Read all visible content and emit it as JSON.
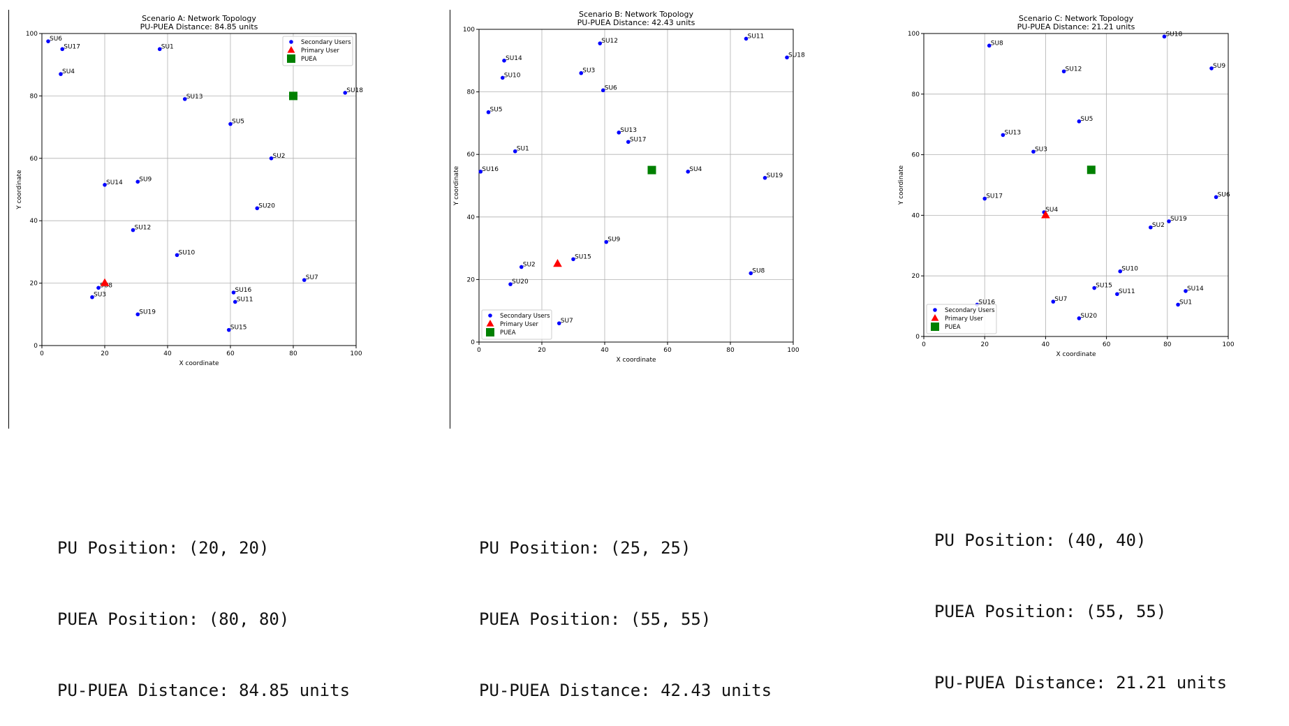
{
  "colors": {
    "secondary": "#0000ff",
    "primary": "#ff0000",
    "puea": "#008000",
    "grid": "#b0b0b0"
  },
  "chart_data": [
    {
      "type": "scatter",
      "title": "Scenario A: Network Topology",
      "subtitle": "PU-PUEA Distance: 84.85 units",
      "xlabel": "X coordinate",
      "ylabel": "Y coordinate",
      "xlim": [
        0,
        100
      ],
      "ylim": [
        0,
        100
      ],
      "xticks": [
        "0",
        "20",
        "40",
        "60",
        "80",
        "100"
      ],
      "yticks": [
        "0",
        "20",
        "40",
        "60",
        "80",
        "100"
      ],
      "grid": true,
      "legend_position": "top-right",
      "legend": [
        "Secondary Users",
        "Primary User",
        "PUEA"
      ],
      "secondary_users": [
        {
          "label": "SU1",
          "x": 37.5,
          "y": 95
        },
        {
          "label": "SU2",
          "x": 73,
          "y": 60
        },
        {
          "label": "SU3",
          "x": 16,
          "y": 15.5
        },
        {
          "label": "SU4",
          "x": 6,
          "y": 87
        },
        {
          "label": "SU5",
          "x": 60,
          "y": 71
        },
        {
          "label": "SU6",
          "x": 2,
          "y": 97.5
        },
        {
          "label": "SU7",
          "x": 83.5,
          "y": 21
        },
        {
          "label": "SU8",
          "x": 18,
          "y": 18.5
        },
        {
          "label": "SU9",
          "x": 30.5,
          "y": 52.5
        },
        {
          "label": "SU10",
          "x": 43,
          "y": 29
        },
        {
          "label": "SU11",
          "x": 61.5,
          "y": 14
        },
        {
          "label": "SU12",
          "x": 29,
          "y": 37
        },
        {
          "label": "SU13",
          "x": 45.5,
          "y": 79
        },
        {
          "label": "SU14",
          "x": 20,
          "y": 51.5
        },
        {
          "label": "SU15",
          "x": 59.5,
          "y": 5
        },
        {
          "label": "SU16",
          "x": 61,
          "y": 17
        },
        {
          "label": "SU17",
          "x": 6.5,
          "y": 95
        },
        {
          "label": "SU18",
          "x": 96.5,
          "y": 81
        },
        {
          "label": "SU19",
          "x": 30.5,
          "y": 10
        },
        {
          "label": "SU20",
          "x": 68.5,
          "y": 44
        }
      ],
      "primary_user": {
        "x": 20,
        "y": 20
      },
      "puea": {
        "x": 80,
        "y": 80
      }
    },
    {
      "type": "scatter",
      "title": "Scenario B: Network Topology",
      "subtitle": "PU-PUEA Distance: 42.43 units",
      "xlabel": "X coordinate",
      "ylabel": "Y coordinate",
      "xlim": [
        0,
        100
      ],
      "ylim": [
        0,
        100
      ],
      "xticks": [
        "0",
        "20",
        "40",
        "60",
        "80",
        "100"
      ],
      "yticks": [
        "0",
        "20",
        "40",
        "60",
        "80",
        "100"
      ],
      "grid": true,
      "legend_position": "bottom-left",
      "legend": [
        "Secondary Users",
        "Primary User",
        "PUEA"
      ],
      "secondary_users": [
        {
          "label": "SU1",
          "x": 11.5,
          "y": 61
        },
        {
          "label": "SU2",
          "x": 13.5,
          "y": 24
        },
        {
          "label": "SU3",
          "x": 32.5,
          "y": 86
        },
        {
          "label": "SU4",
          "x": 66.5,
          "y": 54.5
        },
        {
          "label": "SU5",
          "x": 3,
          "y": 73.5
        },
        {
          "label": "SU6",
          "x": 39.5,
          "y": 80.5
        },
        {
          "label": "SU7",
          "x": 25.5,
          "y": 6
        },
        {
          "label": "SU8",
          "x": 86.5,
          "y": 22
        },
        {
          "label": "SU9",
          "x": 40.5,
          "y": 32
        },
        {
          "label": "SU10",
          "x": 7.5,
          "y": 84.5
        },
        {
          "label": "SU11",
          "x": 85,
          "y": 97
        },
        {
          "label": "SU12",
          "x": 38.5,
          "y": 95.5
        },
        {
          "label": "SU13",
          "x": 44.5,
          "y": 67
        },
        {
          "label": "SU14",
          "x": 8,
          "y": 90
        },
        {
          "label": "SU15",
          "x": 30,
          "y": 26.5
        },
        {
          "label": "SU16",
          "x": 0.5,
          "y": 54.5
        },
        {
          "label": "SU17",
          "x": 47.5,
          "y": 64
        },
        {
          "label": "SU18",
          "x": 98,
          "y": 91
        },
        {
          "label": "SU19",
          "x": 91,
          "y": 52.5
        },
        {
          "label": "SU20",
          "x": 10,
          "y": 18.5
        }
      ],
      "primary_user": {
        "x": 25,
        "y": 25
      },
      "puea": {
        "x": 55,
        "y": 55
      }
    },
    {
      "type": "scatter",
      "title": "Scenario C: Network Topology",
      "subtitle": "PU-PUEA Distance: 21.21 units",
      "xlabel": "X coordinate",
      "ylabel": "Y coordinate",
      "xlim": [
        0,
        100
      ],
      "ylim": [
        0,
        100
      ],
      "xticks": [
        "0",
        "20",
        "40",
        "60",
        "80",
        "100"
      ],
      "yticks": [
        "0",
        "20",
        "40",
        "60",
        "80",
        "100"
      ],
      "grid": true,
      "legend_position": "bottom-left",
      "legend": [
        "Secondary Users",
        "Primary User",
        "PUEA"
      ],
      "secondary_users": [
        {
          "label": "SU1",
          "x": 83.5,
          "y": 10.5
        },
        {
          "label": "SU2",
          "x": 74.5,
          "y": 36
        },
        {
          "label": "SU3",
          "x": 36,
          "y": 61
        },
        {
          "label": "SU4",
          "x": 39.5,
          "y": 41
        },
        {
          "label": "SU5",
          "x": 51,
          "y": 71
        },
        {
          "label": "SU6",
          "x": 96,
          "y": 46
        },
        {
          "label": "SU7",
          "x": 42.5,
          "y": 11.5
        },
        {
          "label": "SU8",
          "x": 21.5,
          "y": 96
        },
        {
          "label": "SU9",
          "x": 94.5,
          "y": 88.5
        },
        {
          "label": "SU10",
          "x": 64.5,
          "y": 21.5
        },
        {
          "label": "SU11",
          "x": 63.5,
          "y": 14
        },
        {
          "label": "SU12",
          "x": 46,
          "y": 87.5
        },
        {
          "label": "SU13",
          "x": 26,
          "y": 66.5
        },
        {
          "label": "SU14",
          "x": 86,
          "y": 15
        },
        {
          "label": "SU15",
          "x": 56,
          "y": 16
        },
        {
          "label": "SU16",
          "x": 17.5,
          "y": 10.5
        },
        {
          "label": "SU17",
          "x": 20,
          "y": 45.5
        },
        {
          "label": "SU18",
          "x": 79,
          "y": 99
        },
        {
          "label": "SU19",
          "x": 80.5,
          "y": 38
        },
        {
          "label": "SU20",
          "x": 51,
          "y": 6
        }
      ],
      "primary_user": {
        "x": 40,
        "y": 40
      },
      "puea": {
        "x": 55,
        "y": 55
      }
    }
  ],
  "info": [
    {
      "pu": "PU Position: (20, 20)",
      "puea": "PUEA Position: (80, 80)",
      "dist": "PU-PUEA Distance: 84.85 units"
    },
    {
      "pu": "PU Position: (25, 25)",
      "puea": "PUEA Position: (55, 55)",
      "dist": "PU-PUEA Distance: 42.43 units"
    },
    {
      "pu": "PU Position: (40, 40)",
      "puea": "PUEA Position: (55, 55)",
      "dist": "PU-PUEA Distance: 21.21 units"
    }
  ]
}
